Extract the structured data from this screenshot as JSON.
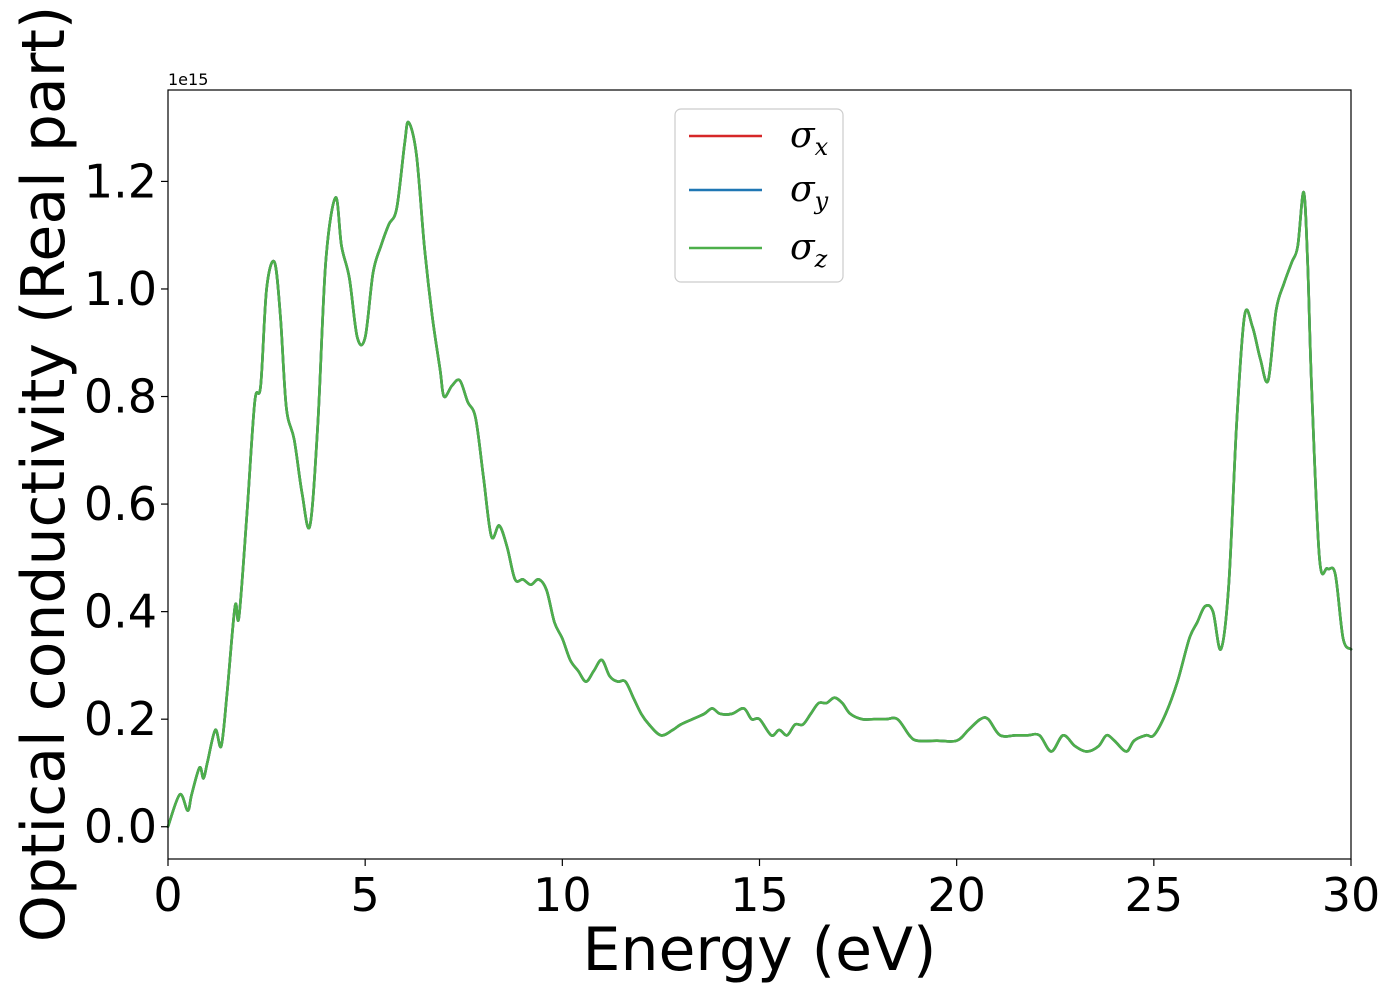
{
  "chart_data": {
    "type": "line",
    "xlabel": "Energy (eV)",
    "ylabel": "Optical conductivity (Real part)",
    "y_offset_label": "1e15",
    "y_scale_multiplier": 1000000000000000.0,
    "xlim": [
      0,
      30
    ],
    "ylim": [
      -0.06,
      1.37
    ],
    "xticks": [
      0,
      5,
      10,
      15,
      20,
      25,
      30
    ],
    "xtick_labels": [
      "0",
      "5",
      "10",
      "15",
      "20",
      "25",
      "30"
    ],
    "yticks": [
      0.0,
      0.2,
      0.4,
      0.6,
      0.8,
      1.0,
      1.2
    ],
    "ytick_labels": [
      "0.0",
      "0.2",
      "0.4",
      "0.6",
      "0.8",
      "1.0",
      "1.2"
    ],
    "grid": false,
    "legend_position": "top-center",
    "x": [
      0,
      0.3,
      0.5,
      0.6,
      0.8,
      0.9,
      1.0,
      1.2,
      1.35,
      1.5,
      1.7,
      1.8,
      2.0,
      2.2,
      2.35,
      2.5,
      2.7,
      2.85,
      3.0,
      3.2,
      3.4,
      3.6,
      3.8,
      4.0,
      4.25,
      4.4,
      4.6,
      4.8,
      5.0,
      5.2,
      5.4,
      5.6,
      5.8,
      6.0,
      6.1,
      6.3,
      6.5,
      6.7,
      6.9,
      7.0,
      7.2,
      7.4,
      7.6,
      7.8,
      8.0,
      8.2,
      8.4,
      8.6,
      8.8,
      9.0,
      9.2,
      9.4,
      9.6,
      9.8,
      10.0,
      10.2,
      10.4,
      10.6,
      10.8,
      11.0,
      11.2,
      11.4,
      11.6,
      11.8,
      12.0,
      12.2,
      12.5,
      12.8,
      13.0,
      13.3,
      13.6,
      13.8,
      14.0,
      14.3,
      14.6,
      14.8,
      15.0,
      15.3,
      15.5,
      15.7,
      15.9,
      16.1,
      16.3,
      16.5,
      16.7,
      16.9,
      17.1,
      17.3,
      17.6,
      17.9,
      18.2,
      18.5,
      18.8,
      19.0,
      19.5,
      20.0,
      20.3,
      20.6,
      20.8,
      21.1,
      21.5,
      21.8,
      22.1,
      22.4,
      22.7,
      23.0,
      23.3,
      23.6,
      23.8,
      24.0,
      24.3,
      24.5,
      24.8,
      25.0,
      25.3,
      25.6,
      25.9,
      26.1,
      26.3,
      26.5,
      26.7,
      26.9,
      27.1,
      27.3,
      27.5,
      27.7,
      27.9,
      28.1,
      28.3,
      28.5,
      28.65,
      28.8,
      28.9,
      29.0,
      29.2,
      29.4,
      29.6,
      29.8,
      30.0
    ],
    "series": [
      {
        "name": "σx",
        "name_base": "σ",
        "name_sub": "x",
        "color": "#d62728",
        "values": [
          0,
          0.06,
          0.03,
          0.06,
          0.11,
          0.09,
          0.12,
          0.18,
          0.15,
          0.25,
          0.41,
          0.39,
          0.58,
          0.79,
          0.82,
          1.0,
          1.05,
          0.95,
          0.78,
          0.72,
          0.62,
          0.56,
          0.75,
          1.05,
          1.17,
          1.08,
          1.02,
          0.91,
          0.91,
          1.03,
          1.08,
          1.12,
          1.15,
          1.27,
          1.31,
          1.25,
          1.08,
          0.95,
          0.85,
          0.8,
          0.82,
          0.83,
          0.79,
          0.76,
          0.65,
          0.54,
          0.56,
          0.52,
          0.46,
          0.46,
          0.45,
          0.46,
          0.44,
          0.38,
          0.35,
          0.31,
          0.29,
          0.27,
          0.29,
          0.31,
          0.28,
          0.27,
          0.27,
          0.24,
          0.21,
          0.19,
          0.17,
          0.18,
          0.19,
          0.2,
          0.21,
          0.22,
          0.21,
          0.21,
          0.22,
          0.2,
          0.2,
          0.17,
          0.18,
          0.17,
          0.19,
          0.19,
          0.21,
          0.23,
          0.23,
          0.24,
          0.23,
          0.21,
          0.2,
          0.2,
          0.2,
          0.2,
          0.17,
          0.16,
          0.16,
          0.16,
          0.18,
          0.2,
          0.2,
          0.17,
          0.17,
          0.17,
          0.17,
          0.14,
          0.17,
          0.15,
          0.14,
          0.15,
          0.17,
          0.16,
          0.14,
          0.16,
          0.17,
          0.17,
          0.21,
          0.27,
          0.35,
          0.38,
          0.41,
          0.4,
          0.33,
          0.45,
          0.75,
          0.95,
          0.93,
          0.87,
          0.83,
          0.96,
          1.01,
          1.05,
          1.08,
          1.18,
          1.05,
          0.82,
          0.5,
          0.48,
          0.47,
          0.35,
          0.33
        ]
      },
      {
        "name": "σy",
        "name_base": "σ",
        "name_sub": "y",
        "color": "#1f77b4",
        "values": [
          0,
          0.06,
          0.03,
          0.06,
          0.11,
          0.09,
          0.12,
          0.18,
          0.15,
          0.25,
          0.41,
          0.39,
          0.58,
          0.79,
          0.82,
          1.0,
          1.05,
          0.95,
          0.78,
          0.72,
          0.62,
          0.56,
          0.75,
          1.05,
          1.17,
          1.08,
          1.02,
          0.91,
          0.91,
          1.03,
          1.08,
          1.12,
          1.15,
          1.27,
          1.31,
          1.25,
          1.08,
          0.95,
          0.85,
          0.8,
          0.82,
          0.83,
          0.79,
          0.76,
          0.65,
          0.54,
          0.56,
          0.52,
          0.46,
          0.46,
          0.45,
          0.46,
          0.44,
          0.38,
          0.35,
          0.31,
          0.29,
          0.27,
          0.29,
          0.31,
          0.28,
          0.27,
          0.27,
          0.24,
          0.21,
          0.19,
          0.17,
          0.18,
          0.19,
          0.2,
          0.21,
          0.22,
          0.21,
          0.21,
          0.22,
          0.2,
          0.2,
          0.17,
          0.18,
          0.17,
          0.19,
          0.19,
          0.21,
          0.23,
          0.23,
          0.24,
          0.23,
          0.21,
          0.2,
          0.2,
          0.2,
          0.2,
          0.17,
          0.16,
          0.16,
          0.16,
          0.18,
          0.2,
          0.2,
          0.17,
          0.17,
          0.17,
          0.17,
          0.14,
          0.17,
          0.15,
          0.14,
          0.15,
          0.17,
          0.16,
          0.14,
          0.16,
          0.17,
          0.17,
          0.21,
          0.27,
          0.35,
          0.38,
          0.41,
          0.4,
          0.33,
          0.45,
          0.75,
          0.95,
          0.93,
          0.87,
          0.83,
          0.96,
          1.01,
          1.05,
          1.08,
          1.18,
          1.05,
          0.82,
          0.5,
          0.48,
          0.47,
          0.35,
          0.33
        ]
      },
      {
        "name": "σz",
        "name_base": "σ",
        "name_sub": "z",
        "color": "#4daf4a",
        "values": [
          0,
          0.06,
          0.03,
          0.06,
          0.11,
          0.09,
          0.12,
          0.18,
          0.15,
          0.25,
          0.41,
          0.39,
          0.58,
          0.79,
          0.82,
          1.0,
          1.05,
          0.95,
          0.78,
          0.72,
          0.62,
          0.56,
          0.75,
          1.05,
          1.17,
          1.08,
          1.02,
          0.91,
          0.91,
          1.03,
          1.08,
          1.12,
          1.15,
          1.27,
          1.31,
          1.25,
          1.08,
          0.95,
          0.85,
          0.8,
          0.82,
          0.83,
          0.79,
          0.76,
          0.65,
          0.54,
          0.56,
          0.52,
          0.46,
          0.46,
          0.45,
          0.46,
          0.44,
          0.38,
          0.35,
          0.31,
          0.29,
          0.27,
          0.29,
          0.31,
          0.28,
          0.27,
          0.27,
          0.24,
          0.21,
          0.19,
          0.17,
          0.18,
          0.19,
          0.2,
          0.21,
          0.22,
          0.21,
          0.21,
          0.22,
          0.2,
          0.2,
          0.17,
          0.18,
          0.17,
          0.19,
          0.19,
          0.21,
          0.23,
          0.23,
          0.24,
          0.23,
          0.21,
          0.2,
          0.2,
          0.2,
          0.2,
          0.17,
          0.16,
          0.16,
          0.16,
          0.18,
          0.2,
          0.2,
          0.17,
          0.17,
          0.17,
          0.17,
          0.14,
          0.17,
          0.15,
          0.14,
          0.15,
          0.17,
          0.16,
          0.14,
          0.16,
          0.17,
          0.17,
          0.21,
          0.27,
          0.35,
          0.38,
          0.41,
          0.4,
          0.33,
          0.45,
          0.75,
          0.95,
          0.93,
          0.87,
          0.83,
          0.96,
          1.01,
          1.05,
          1.08,
          1.18,
          1.05,
          0.82,
          0.5,
          0.48,
          0.47,
          0.35,
          0.33
        ]
      }
    ]
  }
}
